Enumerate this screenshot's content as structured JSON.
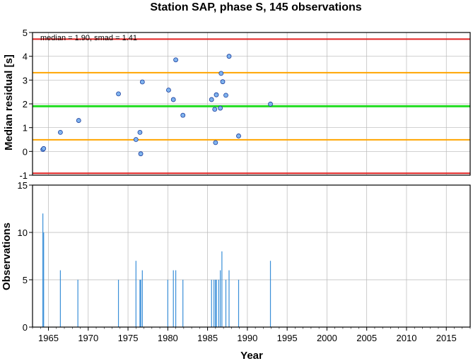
{
  "chart_data": [
    {
      "type": "scatter",
      "title": "Station SAP, phase S, 145 observations",
      "annotation": "median = 1.90, smad = 1.41",
      "xlabel": "",
      "ylabel": "Median residual [s]",
      "xlim": [
        1963,
        2018
      ],
      "ylim": [
        -1,
        5
      ],
      "xticks": [
        1965,
        1970,
        1975,
        1980,
        1985,
        1990,
        1995,
        2000,
        2005,
        2010,
        2015
      ],
      "yticks": [
        -1,
        0,
        1,
        2,
        3,
        4,
        5
      ],
      "grid": true,
      "reference_lines": [
        {
          "y": 4.72,
          "color": "#e02020",
          "role": "upper-limit"
        },
        {
          "y": 3.31,
          "color": "#ffa500",
          "role": "upper-smad"
        },
        {
          "y": 1.9,
          "color": "#22dd22",
          "role": "median"
        },
        {
          "y": 0.49,
          "color": "#ffa500",
          "role": "lower-smad"
        },
        {
          "y": -0.92,
          "color": "#e02020",
          "role": "lower-limit"
        }
      ],
      "series": [
        {
          "marker_color": "#7fb3ee",
          "points": [
            {
              "x": 1964.3,
              "y": 0.08
            },
            {
              "x": 1964.4,
              "y": 0.12
            },
            {
              "x": 1966.5,
              "y": 0.8
            },
            {
              "x": 1968.8,
              "y": 1.3
            },
            {
              "x": 1973.8,
              "y": 2.42
            },
            {
              "x": 1976.0,
              "y": 0.5
            },
            {
              "x": 1976.5,
              "y": 0.8
            },
            {
              "x": 1976.6,
              "y": -0.1
            },
            {
              "x": 1976.8,
              "y": 2.92
            },
            {
              "x": 1980.1,
              "y": 2.58
            },
            {
              "x": 1980.7,
              "y": 2.18
            },
            {
              "x": 1981.0,
              "y": 3.85
            },
            {
              "x": 1981.9,
              "y": 1.52
            },
            {
              "x": 1985.5,
              "y": 2.18
            },
            {
              "x": 1985.9,
              "y": 1.77
            },
            {
              "x": 1986.0,
              "y": 0.37
            },
            {
              "x": 1986.1,
              "y": 2.38
            },
            {
              "x": 1986.6,
              "y": 1.82
            },
            {
              "x": 1986.7,
              "y": 3.28
            },
            {
              "x": 1986.9,
              "y": 2.93
            },
            {
              "x": 1987.3,
              "y": 2.36
            },
            {
              "x": 1987.7,
              "y": 4.0
            },
            {
              "x": 1988.9,
              "y": 0.65
            },
            {
              "x": 1992.9,
              "y": 1.99
            }
          ]
        }
      ]
    },
    {
      "type": "bar",
      "xlabel": "Year",
      "ylabel": "Observations",
      "xlim": [
        1963,
        2018
      ],
      "ylim": [
        0,
        15
      ],
      "xticks": [
        1965,
        1970,
        1975,
        1980,
        1985,
        1990,
        1995,
        2000,
        2005,
        2010,
        2015
      ],
      "yticks": [
        0,
        5,
        10,
        15
      ],
      "grid": true,
      "bar_color": "#3a8fd8",
      "bars": [
        {
          "x": 1964.3,
          "count": 12
        },
        {
          "x": 1964.4,
          "count": 10
        },
        {
          "x": 1966.5,
          "count": 6
        },
        {
          "x": 1968.7,
          "count": 5
        },
        {
          "x": 1973.8,
          "count": 5
        },
        {
          "x": 1976.0,
          "count": 7
        },
        {
          "x": 1976.5,
          "count": 5
        },
        {
          "x": 1976.6,
          "count": 5
        },
        {
          "x": 1976.8,
          "count": 6
        },
        {
          "x": 1980.0,
          "count": 5
        },
        {
          "x": 1980.7,
          "count": 6
        },
        {
          "x": 1981.0,
          "count": 6
        },
        {
          "x": 1981.9,
          "count": 5
        },
        {
          "x": 1985.5,
          "count": 5
        },
        {
          "x": 1985.8,
          "count": 5
        },
        {
          "x": 1986.0,
          "count": 5
        },
        {
          "x": 1986.1,
          "count": 5
        },
        {
          "x": 1986.4,
          "count": 5
        },
        {
          "x": 1986.6,
          "count": 6
        },
        {
          "x": 1986.8,
          "count": 8
        },
        {
          "x": 1987.3,
          "count": 5
        },
        {
          "x": 1987.7,
          "count": 6
        },
        {
          "x": 1988.9,
          "count": 5
        },
        {
          "x": 1992.9,
          "count": 7
        }
      ]
    }
  ]
}
